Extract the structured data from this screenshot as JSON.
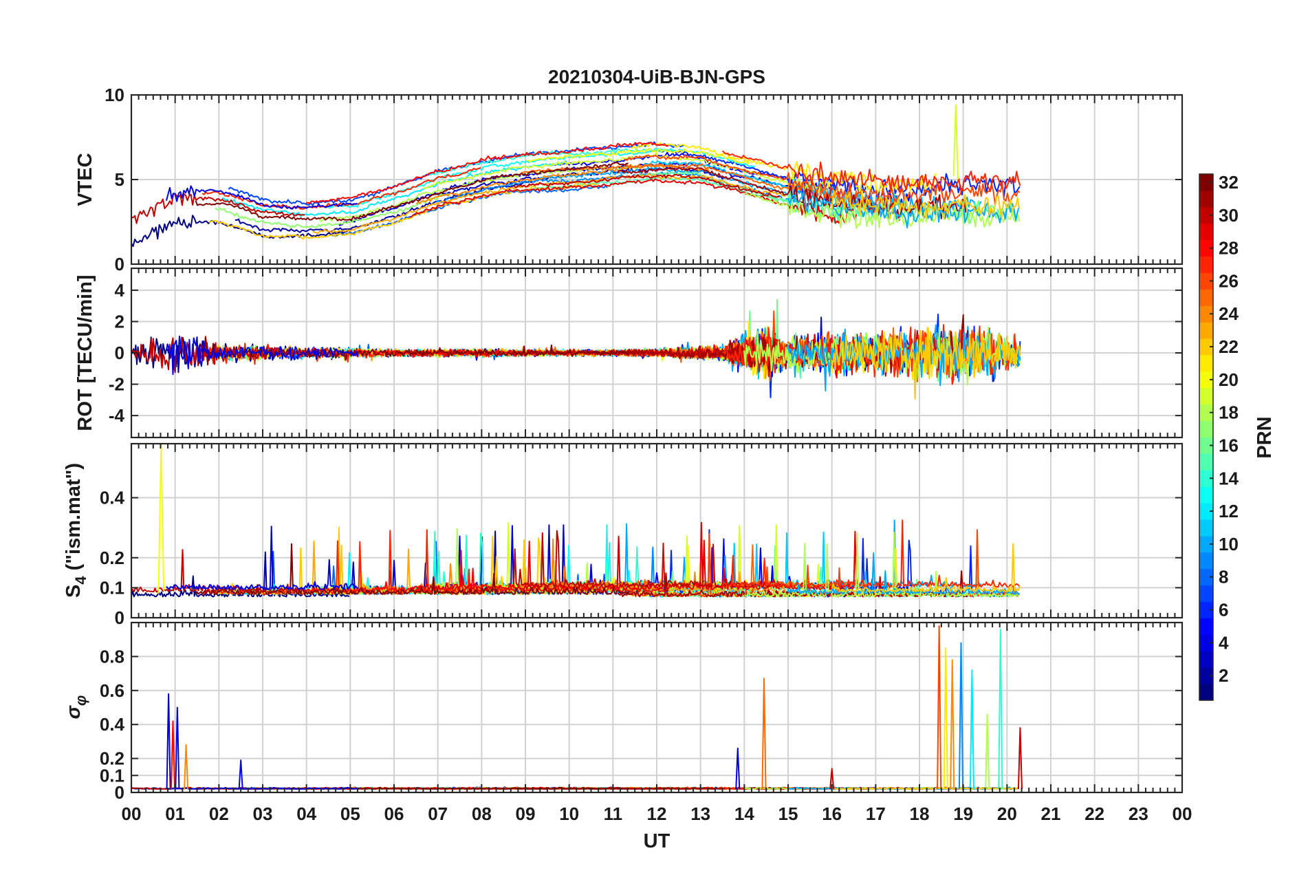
{
  "chart_data": {
    "type": "line",
    "title": "20210304-UiB-BJN-GPS",
    "xlabel": "UT",
    "x_tick_labels": [
      "00",
      "01",
      "02",
      "03",
      "04",
      "05",
      "06",
      "07",
      "08",
      "09",
      "10",
      "11",
      "12",
      "13",
      "14",
      "15",
      "16",
      "17",
      "18",
      "19",
      "20",
      "21",
      "22",
      "23",
      "00"
    ],
    "xlim": [
      0,
      24
    ],
    "data_end_hour": 20.3,
    "colorbar": {
      "label": "PRN",
      "range": [
        1,
        32
      ],
      "tick_labels": [
        "2",
        "4",
        "6",
        "8",
        "10",
        "12",
        "14",
        "16",
        "18",
        "20",
        "22",
        "24",
        "26",
        "28",
        "30",
        "32"
      ],
      "colormap": "jet"
    },
    "panels": [
      {
        "ylabel": "VTEC",
        "ylim": [
          0,
          10
        ],
        "y_ticks": [
          0,
          5,
          10
        ],
        "y_tick_labels": [
          "0",
          "5",
          "10"
        ],
        "trend_hours": [
          0,
          1,
          2,
          3,
          4,
          5,
          6,
          7,
          8,
          9,
          10,
          11,
          12,
          13,
          14,
          15,
          16,
          17,
          18,
          19,
          20.3
        ],
        "trend_values": [
          2.2,
          3.5,
          3.6,
          2.8,
          2.6,
          2.8,
          3.5,
          4.4,
          5.0,
          5.4,
          5.6,
          5.8,
          6.0,
          5.9,
          5.2,
          4.6,
          4.1,
          3.8,
          3.7,
          3.9,
          3.8
        ],
        "peak_value": 9.4
      },
      {
        "ylabel": "ROT [TECU/min]",
        "ylim": [
          -5.4,
          5.4
        ],
        "y_ticks": [
          -4,
          -2,
          0,
          2,
          4
        ],
        "y_tick_labels": [
          "-4",
          "-2",
          "0",
          "2",
          "4"
        ],
        "activity_hours": [
          0,
          0.5,
          1,
          1.5,
          2,
          3,
          4,
          6,
          8,
          10,
          12,
          13.5,
          14,
          14.5,
          15,
          16,
          17,
          18,
          19,
          19.5,
          20.3
        ],
        "activity_amplitude": [
          0.4,
          0.9,
          1.3,
          0.9,
          0.5,
          0.4,
          0.3,
          0.2,
          0.2,
          0.15,
          0.2,
          0.4,
          1.0,
          1.4,
          0.8,
          1.1,
          1.0,
          1.3,
          1.6,
          1.5,
          1.0
        ]
      },
      {
        "ylabel": "S4 (\"ism.mat\")",
        "ylabel_main": "S",
        "ylabel_sub": "4",
        "ylabel_suffix": " (\"ism.mat\")",
        "ylim": [
          0,
          0.58
        ],
        "y_ticks": [
          0,
          0.1,
          0.2,
          0.4
        ],
        "y_tick_labels": [
          "0",
          "0.1",
          "0.2",
          "0.4"
        ],
        "baseline": 0.07,
        "peak_value": 0.58
      },
      {
        "ylabel": "σφ",
        "ylabel_main": "σ",
        "ylabel_sub": "φ",
        "ylim": [
          0,
          1.0
        ],
        "y_ticks": [
          0,
          0.1,
          0.2,
          0.4,
          0.6,
          0.8
        ],
        "y_tick_labels": [
          "0",
          "0.1",
          "0.2",
          "0.4",
          "0.6",
          "0.8"
        ],
        "baseline": 0.02,
        "spikes": [
          {
            "hour": 0.85,
            "value": 0.58,
            "prn": 3
          },
          {
            "hour": 1.05,
            "value": 0.5,
            "prn": 4
          },
          {
            "hour": 0.95,
            "value": 0.42,
            "prn": 28
          },
          {
            "hour": 1.25,
            "value": 0.28,
            "prn": 24
          },
          {
            "hour": 2.5,
            "value": 0.19,
            "prn": 5
          },
          {
            "hour": 13.85,
            "value": 0.26,
            "prn": 4
          },
          {
            "hour": 14.45,
            "value": 0.67,
            "prn": 25
          },
          {
            "hour": 16.0,
            "value": 0.14,
            "prn": 30
          },
          {
            "hour": 18.45,
            "value": 0.98,
            "prn": 26
          },
          {
            "hour": 18.6,
            "value": 0.85,
            "prn": 21
          },
          {
            "hour": 18.75,
            "value": 0.78,
            "prn": 24
          },
          {
            "hour": 18.95,
            "value": 0.88,
            "prn": 9
          },
          {
            "hour": 19.2,
            "value": 0.72,
            "prn": 12
          },
          {
            "hour": 19.55,
            "value": 0.46,
            "prn": 18
          },
          {
            "hour": 19.85,
            "value": 0.96,
            "prn": 14
          },
          {
            "hour": 20.3,
            "value": 0.38,
            "prn": 30
          }
        ]
      }
    ]
  }
}
